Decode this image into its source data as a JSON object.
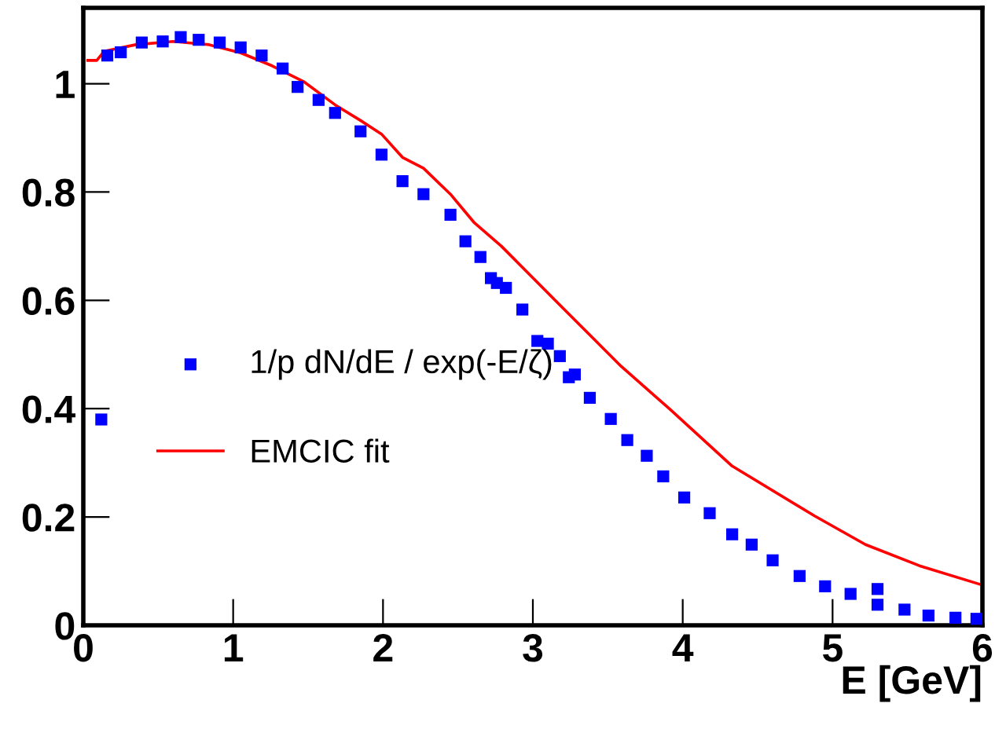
{
  "chart_data": {
    "type": "scatter",
    "xlabel": "E [GeV]",
    "xlim": [
      0,
      6
    ],
    "ylim": [
      0,
      1.14
    ],
    "xticks": [
      0,
      1,
      2,
      3,
      4,
      5,
      6
    ],
    "yticks": [
      0,
      0.2,
      0.4,
      0.6,
      0.8,
      1
    ],
    "grid": false,
    "legend": "left",
    "series": [
      {
        "name": "1/p dN/dE / exp(-E/ζ)",
        "marker": "square",
        "color": "#0000ff",
        "x": [
          0.12,
          0.16,
          0.25,
          0.39,
          0.53,
          0.65,
          0.77,
          0.91,
          1.05,
          1.19,
          1.33,
          1.43,
          1.57,
          1.68,
          1.85,
          1.99,
          2.13,
          2.27,
          2.45,
          2.55,
          2.65,
          2.72,
          2.76,
          2.82,
          2.93,
          3.03,
          3.1,
          3.18,
          3.24,
          3.28,
          3.38,
          3.52,
          3.63,
          3.76,
          3.87,
          4.01,
          4.18,
          4.33,
          4.46,
          4.6,
          4.78,
          4.95,
          5.12,
          5.3,
          5.3,
          5.48,
          5.64,
          5.82,
          5.96
        ],
        "values": [
          0.38,
          1.052,
          1.058,
          1.076,
          1.078,
          1.086,
          1.081,
          1.076,
          1.067,
          1.052,
          1.028,
          0.994,
          0.97,
          0.946,
          0.912,
          0.869,
          0.82,
          0.796,
          0.758,
          0.709,
          0.68,
          0.641,
          0.632,
          0.623,
          0.583,
          0.525,
          0.52,
          0.497,
          0.458,
          0.463,
          0.42,
          0.381,
          0.342,
          0.313,
          0.275,
          0.236,
          0.207,
          0.168,
          0.149,
          0.12,
          0.091,
          0.072,
          0.058,
          0.067,
          0.038,
          0.029,
          0.018,
          0.014,
          0.012
        ]
      },
      {
        "name": "EMCIC fit",
        "type": "line",
        "marker": "none",
        "line_style": "solid",
        "color": "#ff0000",
        "x": [
          0.03,
          0.09,
          0.14,
          0.35,
          0.6,
          0.84,
          1.05,
          1.26,
          1.47,
          1.68,
          1.85,
          1.99,
          2.13,
          2.27,
          2.45,
          2.61,
          2.79,
          2.93,
          3.21,
          3.42,
          3.59,
          3.91,
          4.33,
          4.88,
          5.22,
          5.58,
          5.98
        ],
        "values": [
          1.043,
          1.043,
          1.06,
          1.072,
          1.078,
          1.072,
          1.057,
          1.033,
          1.004,
          0.961,
          0.932,
          0.907,
          0.864,
          0.844,
          0.796,
          0.743,
          0.7,
          0.661,
          0.583,
          0.525,
          0.478,
          0.4,
          0.294,
          0.202,
          0.149,
          0.11,
          0.076
        ]
      }
    ]
  }
}
